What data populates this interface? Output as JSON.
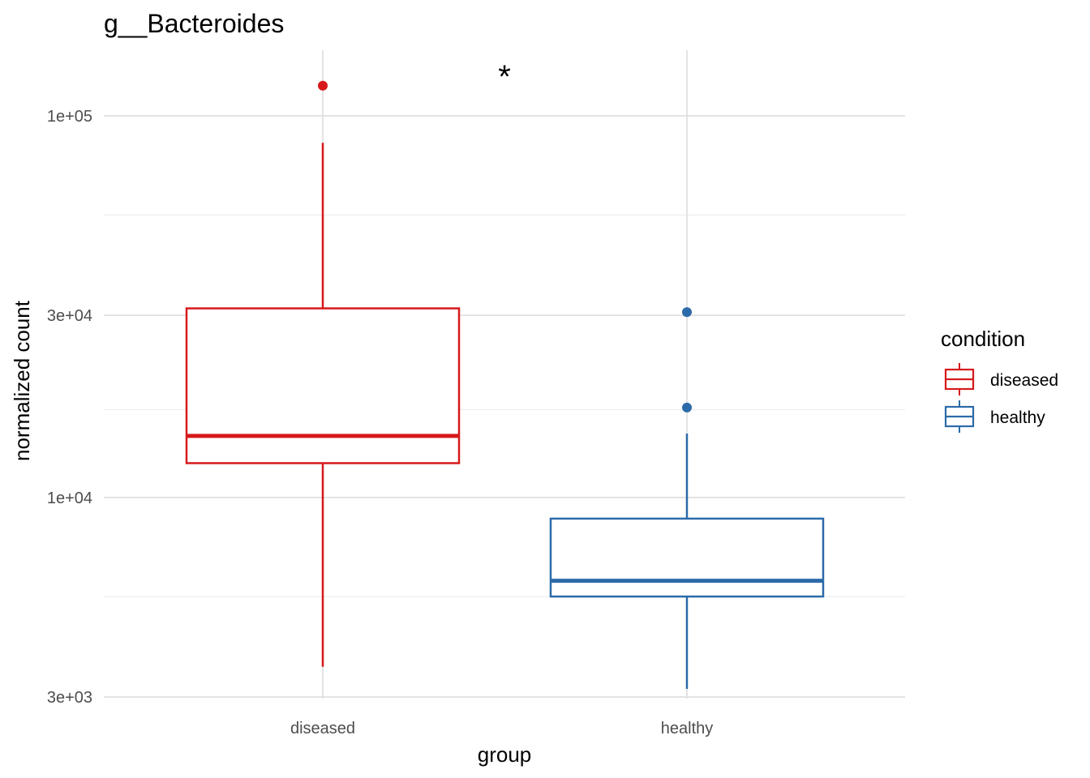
{
  "chart_data": {
    "type": "box",
    "title": "g__Bacteroides",
    "xlabel": "group",
    "ylabel": "normalized count",
    "y_scale": "log10",
    "ylim": [
      2900,
      140000
    ],
    "y_major_ticks": [
      3000,
      10000,
      30000,
      100000
    ],
    "y_tick_labels": [
      "3e+03",
      "1e+04",
      "3e+04",
      "1e+05"
    ],
    "y_minor_ticks": [
      5500,
      17000,
      55000
    ],
    "categories": [
      "diseased",
      "healthy"
    ],
    "annotation": "*",
    "legend": {
      "title": "condition",
      "position": "right",
      "entries": [
        {
          "label": "diseased",
          "color": "#d7191c"
        },
        {
          "label": "healthy",
          "color": "#2c6aa9"
        }
      ]
    },
    "grid": true,
    "boxes": [
      {
        "category": "diseased",
        "color": "#d7191c",
        "whisker_low": 3600,
        "q1": 12300,
        "median": 14500,
        "q3": 31300,
        "whisker_high": 85000,
        "outliers": [
          120000
        ]
      },
      {
        "category": "healthy",
        "color": "#2c6aa9",
        "whisker_low": 3150,
        "q1": 5500,
        "median": 6050,
        "q3": 8800,
        "whisker_high": 14700,
        "outliers": [
          17200,
          30600
        ]
      }
    ]
  }
}
